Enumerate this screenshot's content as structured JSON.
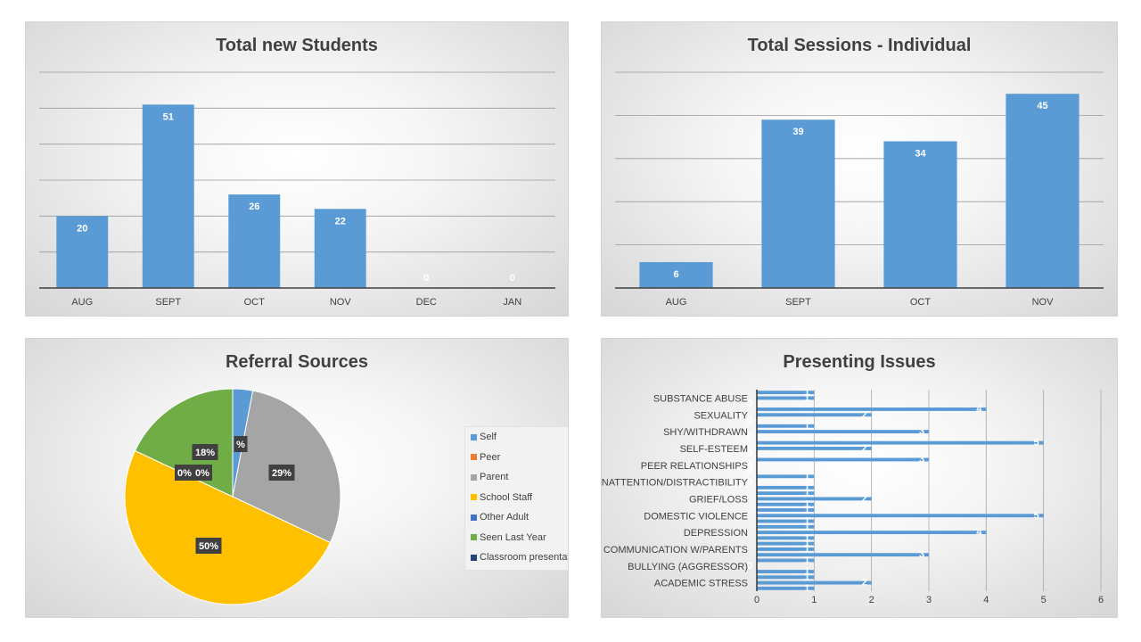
{
  "chart_data": [
    {
      "type": "bar",
      "title": "Total new Students",
      "categories": [
        "AUG",
        "SEPT",
        "OCT",
        "NOV",
        "DEC",
        "JAN"
      ],
      "values": [
        20,
        51,
        26,
        22,
        0,
        0
      ],
      "ylim": [
        0,
        60
      ],
      "grid": true,
      "color": "#5b9bd5"
    },
    {
      "type": "bar",
      "title": "Total Sessions - Individual",
      "categories": [
        "AUG",
        "SEPT",
        "OCT",
        "NOV"
      ],
      "values": [
        6,
        39,
        34,
        45
      ],
      "ylim": [
        0,
        50
      ],
      "grid": true,
      "color": "#5b9bd5"
    },
    {
      "type": "pie",
      "title": "Referral Sources",
      "slices": [
        {
          "name": "Self",
          "value": 3,
          "label": "",
          "color": "#5b9bd5"
        },
        {
          "name": "Peer",
          "value": 0,
          "label": "0%",
          "color": "#ed7d31"
        },
        {
          "name": "Parent",
          "value": 29,
          "label": "29%",
          "color": "#a5a5a5"
        },
        {
          "name": "School Staff",
          "value": 50,
          "label": "50%",
          "color": "#ffc000"
        },
        {
          "name": "Other Adult",
          "value": 0,
          "label": "0%",
          "color": "#4472c4"
        },
        {
          "name": "Seen Last Year",
          "value": 18,
          "label": "18%",
          "color": "#70ad47"
        },
        {
          "name": "Classroom presentation",
          "value": 0,
          "label": "%",
          "color": "#264478"
        }
      ],
      "legend": "right"
    },
    {
      "type": "bar",
      "orientation": "horizontal",
      "title": "Presenting Issues",
      "categories": [
        "ACADEMIC STRESS",
        "BULLYING (AGGRESSOR)",
        "COMMUNICATION W/PARENTS",
        "DEPRESSION",
        "DOMESTIC VIOLENCE",
        "GRIEF/LOSS",
        "INATTENTION/DISTRACTIBILITY",
        "PEER RELATIONSHIPS",
        "SELF-ESTEEM",
        "SHY/WITHDRAWN",
        "SEXUALITY",
        "SUBSTANCE ABUSE"
      ],
      "series": [
        {
          "values": [
            1,
            1,
            1,
            1,
            1,
            1,
            1,
            3,
            5,
            1,
            4,
            1
          ]
        },
        {
          "values": [
            2,
            0,
            1,
            4,
            5,
            2,
            0,
            0,
            2,
            3,
            2,
            1
          ]
        },
        {
          "values": [
            1,
            1,
            3,
            1,
            1,
            1,
            1,
            0,
            0,
            0,
            0,
            0
          ]
        }
      ],
      "xticks": [
        0,
        1,
        2,
        3,
        4,
        5,
        6
      ],
      "xlim": [
        0,
        6
      ],
      "grid": true,
      "color": "#5b9bd5"
    }
  ]
}
